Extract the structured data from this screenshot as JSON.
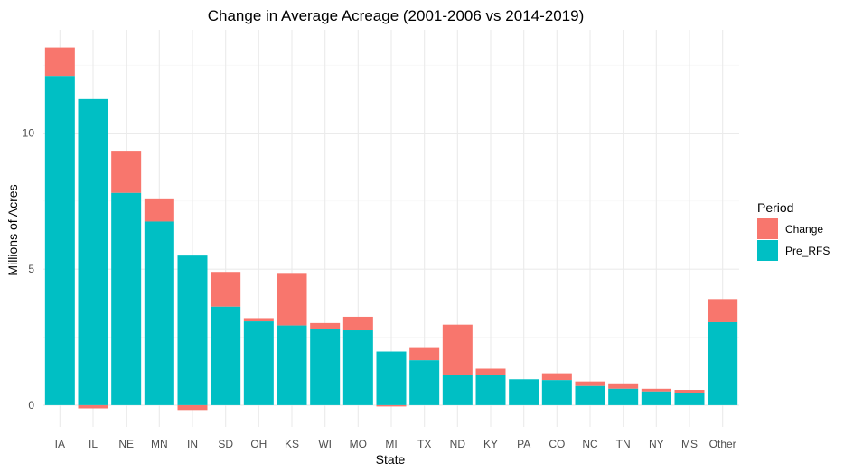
{
  "chart_data": {
    "type": "bar",
    "title": "Change in Average Acreage (2001-2006 vs 2014-2019)",
    "xlabel": "State",
    "ylabel": "Millions of Acres",
    "categories": [
      "IA",
      "IL",
      "NE",
      "MN",
      "IN",
      "SD",
      "OH",
      "KS",
      "WI",
      "MO",
      "MI",
      "TX",
      "ND",
      "KY",
      "PA",
      "CO",
      "NC",
      "TN",
      "NY",
      "MS",
      "Other"
    ],
    "series": [
      {
        "name": "Pre_RFS",
        "color": "#00BFC4",
        "values": [
          12.1,
          11.25,
          7.8,
          6.75,
          5.5,
          3.62,
          3.08,
          2.93,
          2.8,
          2.75,
          1.97,
          1.65,
          1.12,
          1.12,
          0.95,
          0.92,
          0.7,
          0.6,
          0.5,
          0.43,
          3.05
        ]
      },
      {
        "name": "Change",
        "color": "#F8766D",
        "values": [
          1.05,
          -0.12,
          1.55,
          0.85,
          -0.18,
          1.28,
          0.12,
          1.9,
          0.22,
          0.5,
          -0.05,
          0.45,
          1.84,
          0.22,
          0.0,
          0.25,
          0.17,
          0.2,
          0.1,
          0.13,
          0.85
        ]
      }
    ],
    "stacked": true,
    "ylim": [
      -0.8,
      13.8
    ],
    "yticks": [
      0,
      5,
      10
    ],
    "grid": true,
    "legend": {
      "title": "Period",
      "position": "right",
      "entries": [
        "Change",
        "Pre_RFS"
      ]
    }
  }
}
